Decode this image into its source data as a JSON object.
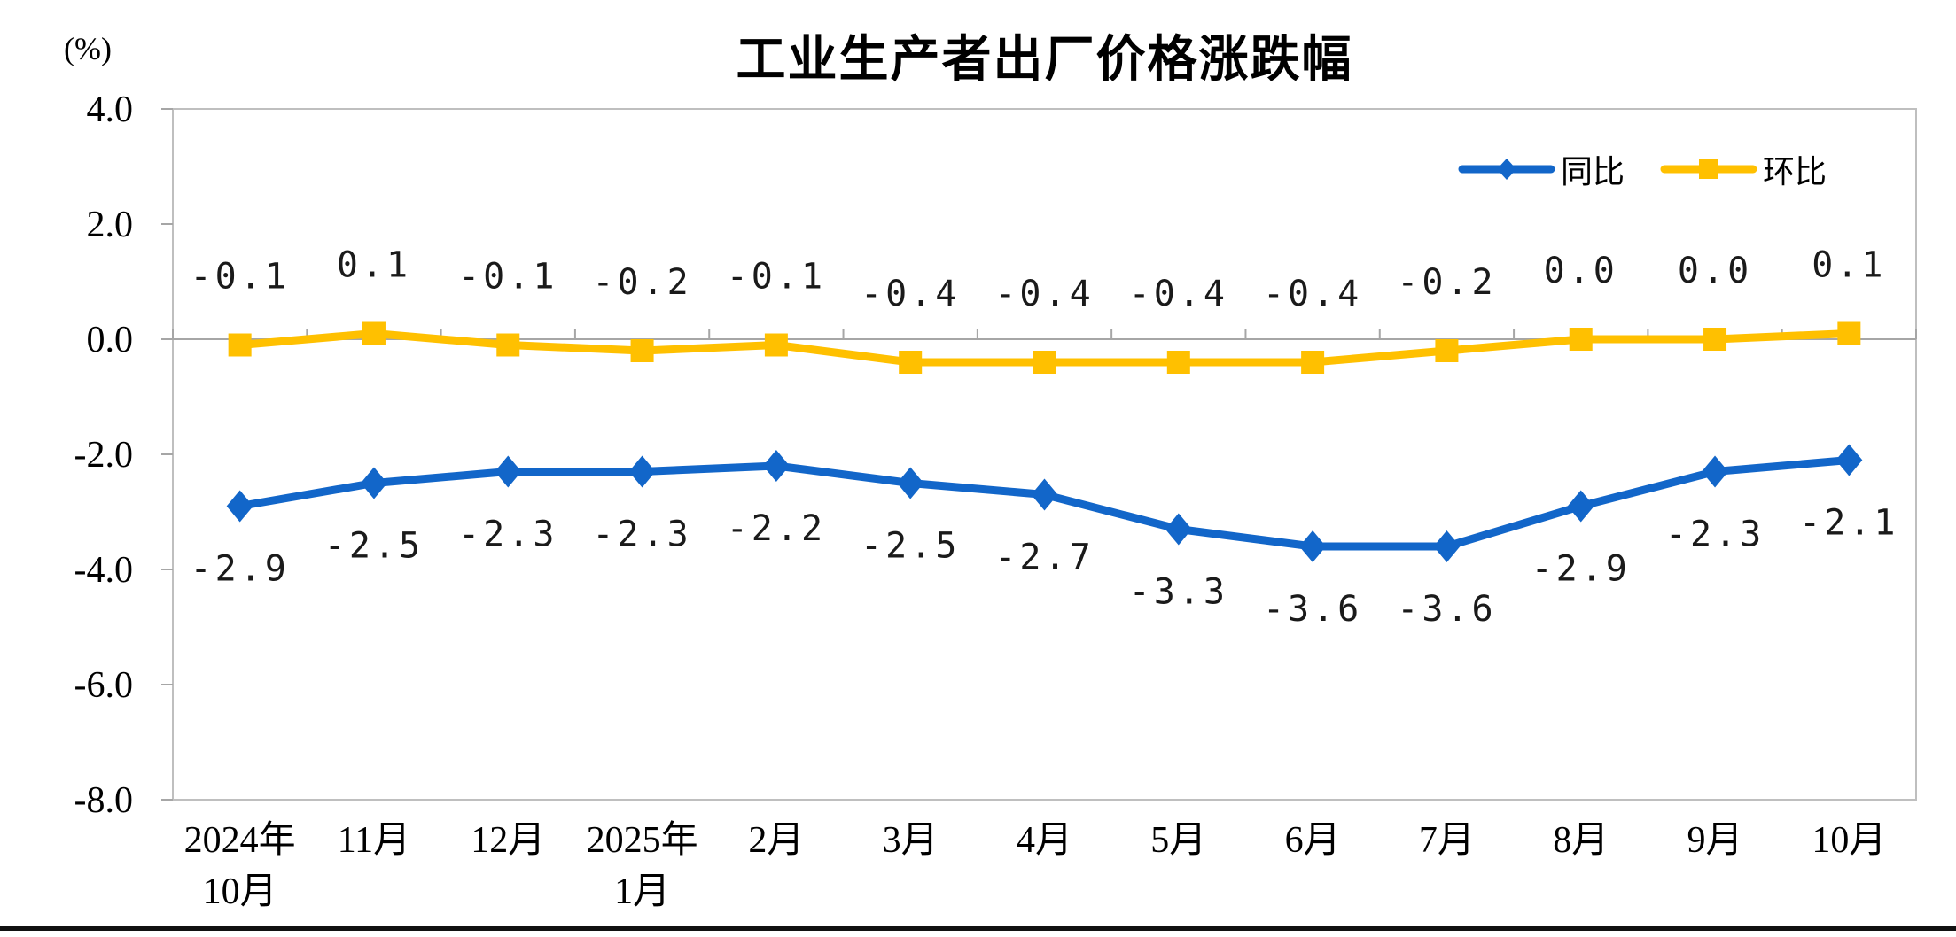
{
  "chart_data": {
    "type": "line",
    "title": "工业生产者出厂价格涨跌幅",
    "unit_label": "(%)",
    "categories": [
      "2024年\n10月",
      "11月",
      "12月",
      "2025年\n1月",
      "2月",
      "3月",
      "4月",
      "5月",
      "6月",
      "7月",
      "8月",
      "9月",
      "10月"
    ],
    "y_ticks": [
      "4.0",
      "2.0",
      "0.0",
      "-2.0",
      "-4.0",
      "-6.0",
      "-8.0"
    ],
    "ylim": [
      -8.0,
      4.0
    ],
    "grid": "zero-line-only",
    "legend_position": "top-right",
    "series": [
      {
        "name": "同比",
        "color": "#1266C9",
        "marker": "diamond",
        "label_position": "below",
        "values": [
          -2.9,
          -2.5,
          -2.3,
          -2.3,
          -2.2,
          -2.5,
          -2.7,
          -3.3,
          -3.6,
          -3.6,
          -2.9,
          -2.3,
          -2.1
        ],
        "labels": [
          "-2.9",
          "-2.5",
          "-2.3",
          "-2.3",
          "-2.2",
          "-2.5",
          "-2.7",
          "-3.3",
          "-3.6",
          "-3.6",
          "-2.9",
          "-2.3",
          "-2.1"
        ]
      },
      {
        "name": "环比",
        "color": "#FFC000",
        "marker": "square",
        "label_position": "above",
        "values": [
          -0.1,
          0.1,
          -0.1,
          -0.2,
          -0.1,
          -0.4,
          -0.4,
          -0.4,
          -0.4,
          -0.2,
          0.0,
          0.0,
          0.1
        ],
        "labels": [
          "-0.1",
          "0.1",
          "-0.1",
          "-0.2",
          "-0.1",
          "-0.4",
          "-0.4",
          "-0.4",
          "-0.4",
          "-0.2",
          "0.0",
          "0.0",
          "0.1"
        ]
      }
    ],
    "axis_color": "#BFBFBF",
    "tick_color": "#A6A6A6"
  }
}
